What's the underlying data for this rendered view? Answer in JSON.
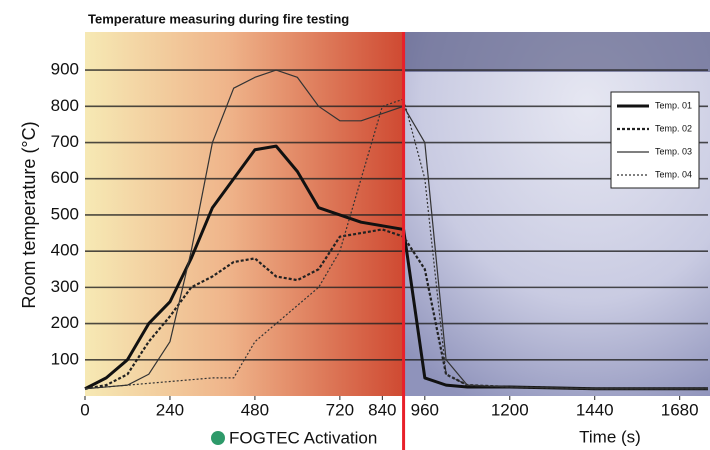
{
  "chart_data": {
    "type": "line",
    "title": "Temperature measuring during fire testing",
    "ylabel": "Room temperature (°C)",
    "xlabel": "Time (s)",
    "annotation": {
      "label": "FOGTEC Activation",
      "x": 900
    },
    "x": [
      0,
      60,
      120,
      180,
      240,
      300,
      360,
      420,
      480,
      540,
      600,
      660,
      720,
      780,
      840,
      900,
      960,
      1020,
      1080,
      1200,
      1440,
      1680,
      1760
    ],
    "series": [
      {
        "name": "Temp. 01",
        "color": "#111111",
        "width": 3,
        "dash": "none",
        "values": [
          20,
          50,
          100,
          200,
          260,
          380,
          520,
          600,
          680,
          690,
          620,
          520,
          500,
          480,
          470,
          460,
          50,
          30,
          25,
          25,
          20,
          20,
          20
        ]
      },
      {
        "name": "Temp. 02",
        "color": "#222222",
        "width": 2.2,
        "dash": "3 2",
        "values": [
          20,
          30,
          60,
          150,
          220,
          300,
          330,
          370,
          380,
          330,
          320,
          350,
          440,
          450,
          460,
          440,
          350,
          60,
          30,
          25,
          20,
          20,
          20
        ]
      },
      {
        "name": "Temp. 03",
        "color": "#333333",
        "width": 1.2,
        "dash": "none",
        "values": [
          20,
          25,
          30,
          60,
          150,
          400,
          700,
          850,
          880,
          900,
          880,
          800,
          760,
          760,
          780,
          800,
          700,
          100,
          30,
          25,
          20,
          20,
          20
        ]
      },
      {
        "name": "Temp. 04",
        "color": "#333333",
        "width": 1.2,
        "dash": "2 2",
        "values": [
          20,
          25,
          30,
          35,
          40,
          45,
          50,
          50,
          150,
          200,
          250,
          300,
          400,
          600,
          800,
          820,
          600,
          60,
          30,
          25,
          20,
          20,
          20
        ]
      }
    ],
    "xlim": [
      0,
      1760
    ],
    "xticks": [
      0,
      240,
      480,
      720,
      840,
      960,
      1200,
      1440,
      1680
    ],
    "ylim": [
      0,
      950
    ],
    "yticks": [
      100,
      200,
      300,
      400,
      500,
      600,
      700,
      800,
      900
    ],
    "grid": true,
    "legend": "upper right"
  }
}
